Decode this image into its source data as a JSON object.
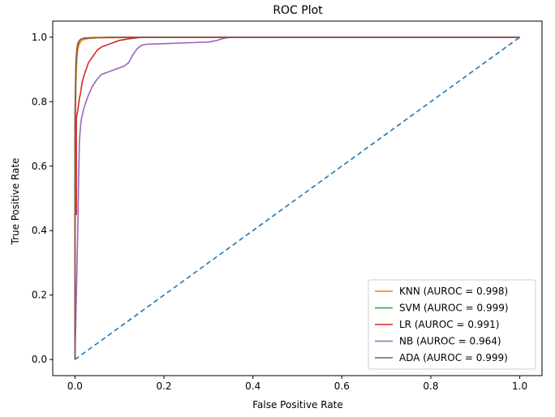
{
  "chart_data": {
    "type": "line",
    "title": "ROC Plot",
    "xlabel": "False Positive Rate",
    "ylabel": "True Positive Rate",
    "xlim": [
      -0.05,
      1.05
    ],
    "ylim": [
      -0.05,
      1.05
    ],
    "xticks": [
      0.0,
      0.2,
      0.4,
      0.6,
      0.8,
      1.0
    ],
    "yticks": [
      0.0,
      0.2,
      0.4,
      0.6,
      0.8,
      1.0
    ],
    "xtick_labels": [
      "0.0",
      "0.2",
      "0.4",
      "0.6",
      "0.8",
      "1.0"
    ],
    "ytick_labels": [
      "0.0",
      "0.2",
      "0.4",
      "0.6",
      "0.8",
      "1.0"
    ],
    "grid": false,
    "legend_position": "lower-right",
    "series": [
      {
        "name": "KNN (AUROC = 0.998)",
        "color": "#ff7f0e",
        "style": "solid",
        "x": [
          0.0,
          0.0,
          0.002,
          0.004,
          0.006,
          0.01,
          0.015,
          0.02,
          0.03,
          0.05,
          0.1,
          0.2,
          0.4,
          1.0
        ],
        "y": [
          0.0,
          0.6,
          0.85,
          0.93,
          0.96,
          0.98,
          0.99,
          0.993,
          0.996,
          0.998,
          0.999,
          1.0,
          1.0,
          1.0
        ]
      },
      {
        "name": "SVM (AUROC = 0.999)",
        "color": "#2ca02c",
        "style": "solid",
        "x": [
          0.0,
          0.0,
          0.002,
          0.004,
          0.006,
          0.01,
          0.015,
          0.02,
          0.03,
          0.05,
          0.1,
          0.2,
          1.0
        ],
        "y": [
          0.0,
          0.7,
          0.9,
          0.95,
          0.975,
          0.99,
          0.995,
          0.997,
          0.998,
          0.999,
          1.0,
          1.0,
          1.0
        ]
      },
      {
        "name": "LR (AUROC = 0.991)",
        "color": "#d62728",
        "style": "solid",
        "x": [
          0.0,
          0.0,
          0.003,
          0.003,
          0.006,
          0.008,
          0.01,
          0.013,
          0.016,
          0.02,
          0.025,
          0.03,
          0.04,
          0.05,
          0.06,
          0.08,
          0.1,
          0.12,
          0.15,
          0.2,
          0.3,
          1.0
        ],
        "y": [
          0.0,
          0.45,
          0.45,
          0.75,
          0.77,
          0.79,
          0.81,
          0.83,
          0.86,
          0.88,
          0.9,
          0.92,
          0.94,
          0.96,
          0.97,
          0.98,
          0.99,
          0.995,
          1.0,
          1.0,
          1.0,
          1.0
        ]
      },
      {
        "name": "NB (AUROC = 0.964)",
        "color": "#9467bd",
        "style": "solid",
        "x": [
          0.0,
          0.003,
          0.006,
          0.008,
          0.01,
          0.013,
          0.015,
          0.02,
          0.025,
          0.03,
          0.04,
          0.05,
          0.06,
          0.07,
          0.08,
          0.09,
          0.1,
          0.11,
          0.12,
          0.13,
          0.14,
          0.15,
          0.16,
          0.2,
          0.3,
          0.32,
          0.33,
          0.35,
          0.4,
          1.0
        ],
        "y": [
          0.0,
          0.2,
          0.38,
          0.55,
          0.68,
          0.73,
          0.75,
          0.78,
          0.8,
          0.82,
          0.85,
          0.87,
          0.885,
          0.89,
          0.895,
          0.9,
          0.905,
          0.91,
          0.92,
          0.945,
          0.965,
          0.975,
          0.978,
          0.98,
          0.985,
          0.99,
          0.995,
          1.0,
          1.0,
          1.0
        ]
      },
      {
        "name": "ADA (AUROC = 0.999)",
        "color": "#8c564b",
        "style": "solid",
        "x": [
          0.0,
          0.0,
          0.002,
          0.004,
          0.006,
          0.01,
          0.015,
          0.02,
          0.03,
          0.05,
          0.1,
          0.2,
          1.0
        ],
        "y": [
          0.0,
          0.75,
          0.92,
          0.96,
          0.98,
          0.99,
          0.995,
          0.997,
          0.998,
          0.999,
          1.0,
          1.0,
          1.0
        ]
      }
    ],
    "reference_line": {
      "color": "#1f77b4",
      "style": "dashed",
      "x": [
        0.0,
        1.0
      ],
      "y": [
        0.0,
        1.0
      ]
    }
  }
}
